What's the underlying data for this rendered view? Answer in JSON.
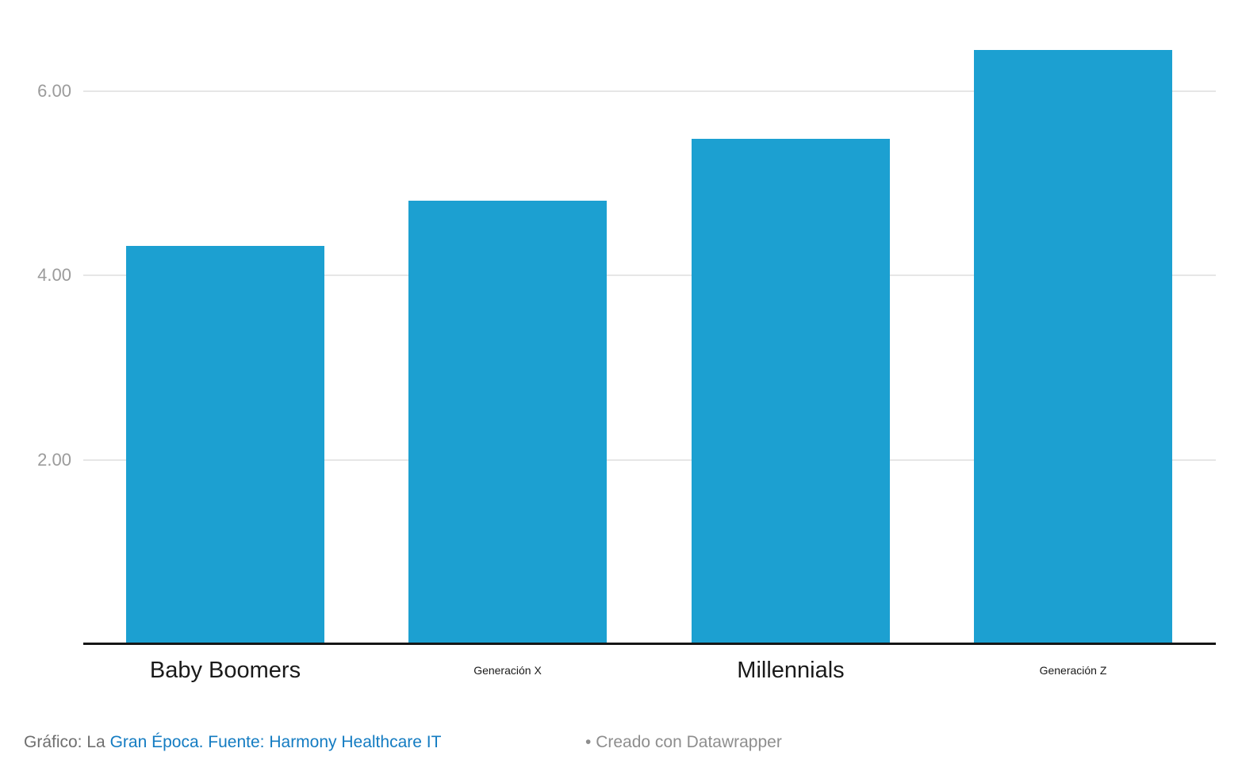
{
  "chart_data": {
    "type": "bar",
    "categories": [
      "Baby Boomers",
      "Generación X",
      "Millennials",
      "Generación Z"
    ],
    "values": [
      4.32,
      4.81,
      5.48,
      6.45
    ],
    "title": "",
    "xlabel": "",
    "ylabel": "",
    "ylim": [
      0,
      7
    ],
    "yticks": [
      2,
      4,
      6
    ],
    "ytick_labels": [
      "2.00",
      "4.00",
      "6.00"
    ],
    "grid": true,
    "legend": false,
    "bar_color": "#1ca0d1",
    "category_label_sizes": [
      "large",
      "small",
      "large",
      "small"
    ]
  },
  "footer": {
    "byline_prefix": "Gráfico: La ",
    "byline_link": "Gran Época. Fuente: Harmony Healthcare IT",
    "credit_bullet": "•",
    "credit_text": "Creado con Datawrapper"
  },
  "colors": {
    "bar": "#1ca0d1",
    "gridline": "#e6e6e6",
    "axis_line": "#161616",
    "tick_label": "#9b9b9b",
    "category_label": "#1a1a1a",
    "footer_gray": "#6f6f6f",
    "credit_gray": "#8e8e8e",
    "link_blue": "#147cc2"
  }
}
